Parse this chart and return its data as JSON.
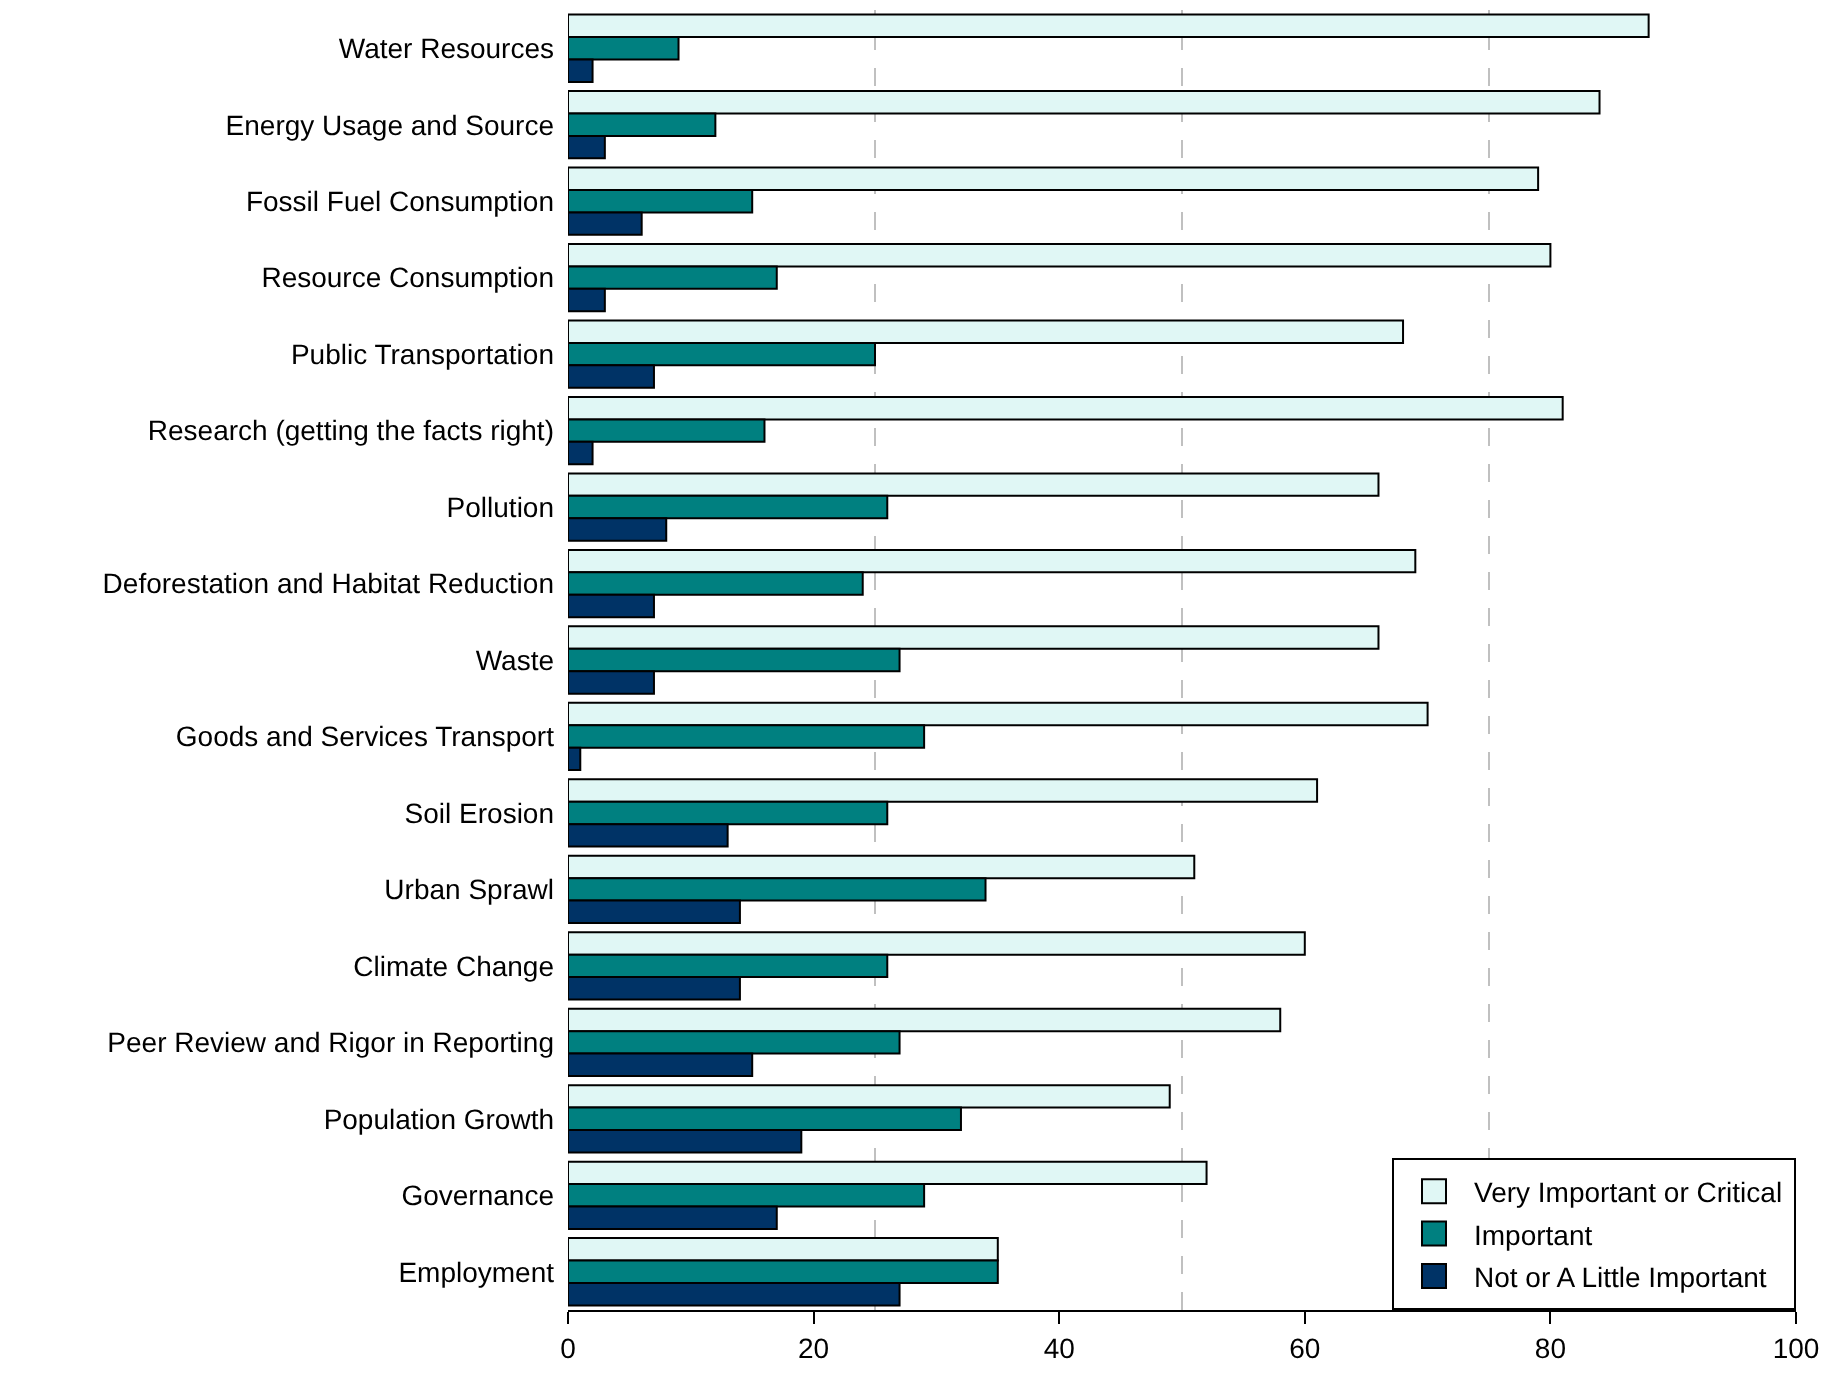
{
  "chart_data": {
    "type": "bar",
    "orientation": "horizontal",
    "categories": [
      "Water Resources",
      "Energy Usage and Source",
      "Fossil Fuel Consumption",
      "Resource Consumption",
      "Public Transportation",
      "Research (getting the facts right)",
      "Pollution",
      "Deforestation and Habitat Reduction",
      "Waste",
      "Goods and Services Transport",
      "Soil Erosion",
      "Urban Sprawl",
      "Climate Change",
      "Peer Review and Rigor in Reporting",
      "Population Growth",
      "Governance",
      "Employment"
    ],
    "series": [
      {
        "name": "Very Important or Critical",
        "color": "#e0f7f5",
        "values": [
          88,
          84,
          79,
          80,
          68,
          81,
          66,
          69,
          66,
          70,
          61,
          51,
          60,
          58,
          49,
          52,
          35
        ]
      },
      {
        "name": "Important",
        "color": "#008080",
        "values": [
          9,
          12,
          15,
          17,
          25,
          16,
          26,
          24,
          27,
          29,
          26,
          34,
          26,
          27,
          32,
          29,
          35
        ]
      },
      {
        "name": "Not or A Little Important",
        "color": "#003366",
        "values": [
          2,
          3,
          6,
          3,
          7,
          2,
          8,
          7,
          7,
          1,
          13,
          14,
          14,
          15,
          19,
          17,
          27
        ]
      }
    ],
    "xlim": [
      0,
      100
    ],
    "xticks": [
      0,
      20,
      40,
      60,
      80,
      100
    ],
    "ref_lines": [
      {
        "axis": "x",
        "value": 25,
        "color": "#c0c0c0",
        "line_style": "dashed"
      },
      {
        "axis": "x",
        "value": 50,
        "color": "#c0c0c0",
        "line_style": "dashed"
      },
      {
        "axis": "x",
        "value": 75,
        "color": "#c0c0c0",
        "line_style": "dashed"
      }
    ],
    "legend": "bottom right"
  }
}
